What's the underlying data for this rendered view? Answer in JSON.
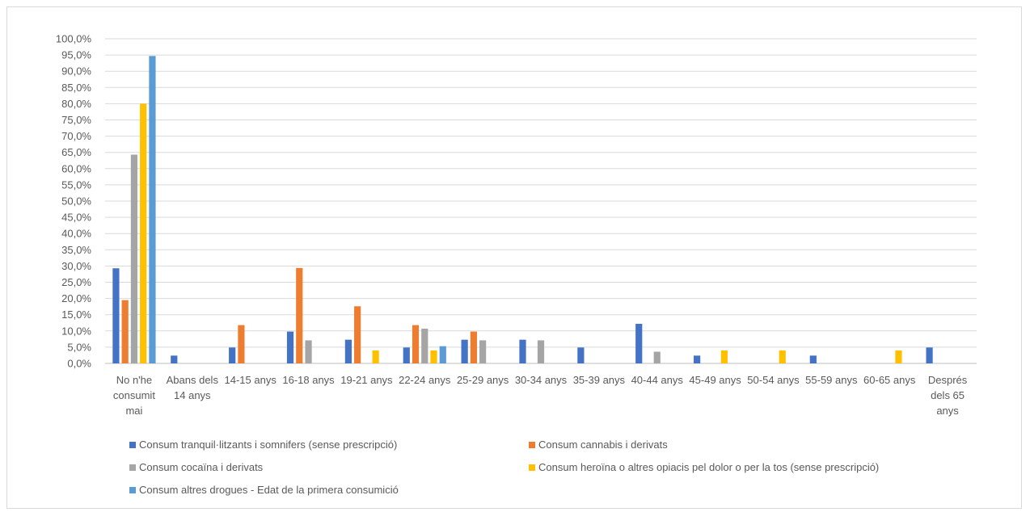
{
  "chart_data": {
    "type": "bar",
    "categories": [
      "No n'he consumit mai",
      "Abans dels 14 anys",
      "14-15 anys",
      "16-18 anys",
      "19-21 anys",
      "22-24 anys",
      "25-29 anys",
      "30-34 anys",
      "35-39 anys",
      "40-44 anys",
      "45-49 anys",
      "50-54 anys",
      "55-59 anys",
      "60-65 anys",
      "Després dels 65 anys"
    ],
    "category_label_lines": [
      [
        "No n'he",
        "consumit",
        "mai"
      ],
      [
        "Abans dels",
        "14 anys"
      ],
      [
        "14-15 anys"
      ],
      [
        "16-18 anys"
      ],
      [
        "19-21 anys"
      ],
      [
        "22-24 anys"
      ],
      [
        "25-29 anys"
      ],
      [
        "30-34 anys"
      ],
      [
        "35-39 anys"
      ],
      [
        "40-44 anys"
      ],
      [
        "45-49 anys"
      ],
      [
        "50-54 anys"
      ],
      [
        "55-59 anys"
      ],
      [
        "60-65 anys"
      ],
      [
        "Després",
        "dels 65",
        "anys"
      ]
    ],
    "series": [
      {
        "name": "Consum tranquil·litzants i somnifers (sense prescripció)",
        "color": "#4472C4",
        "values": [
          29.3,
          2.4,
          4.9,
          9.8,
          7.3,
          4.9,
          7.3,
          7.3,
          4.9,
          12.2,
          2.4,
          0,
          2.4,
          0,
          4.9
        ]
      },
      {
        "name": "Consum cannabis i derivats",
        "color": "#ED7D31",
        "values": [
          19.5,
          0,
          11.8,
          29.4,
          17.6,
          11.8,
          9.8,
          0,
          0,
          0,
          0,
          0,
          0,
          0,
          0
        ]
      },
      {
        "name": "Consum cocaïna i derivats",
        "color": "#A5A5A5",
        "values": [
          64.3,
          0,
          0,
          7.1,
          0,
          10.7,
          7.1,
          7.1,
          0,
          3.6,
          0,
          0,
          0,
          0,
          0
        ]
      },
      {
        "name": "Consum heroïna o altres opiacis pel dolor o per la tos (sense prescripció)",
        "color": "#FFC000",
        "values": [
          80.0,
          0,
          0,
          0,
          4.0,
          4.0,
          0,
          0,
          0,
          0,
          4.0,
          4.0,
          0,
          4.0,
          0
        ]
      },
      {
        "name": "Consum altres drogues - Edat de la primera consumició",
        "color": "#5B9BD5",
        "values": [
          94.7,
          0,
          0,
          0,
          0,
          5.3,
          0,
          0,
          0,
          0,
          0,
          0,
          0,
          0,
          0
        ]
      }
    ],
    "y_ticks": [
      "0,0%",
      "5,0%",
      "10,0%",
      "15,0%",
      "20,0%",
      "25,0%",
      "30,0%",
      "35,0%",
      "40,0%",
      "45,0%",
      "50,0%",
      "55,0%",
      "60,0%",
      "65,0%",
      "70,0%",
      "75,0%",
      "80,0%",
      "85,0%",
      "90,0%",
      "95,0%",
      "100,0%"
    ],
    "ylim": [
      0,
      100
    ],
    "y_unit": "%",
    "grid": true,
    "legend_position": "bottom",
    "title": "",
    "xlabel": "",
    "ylabel": ""
  }
}
